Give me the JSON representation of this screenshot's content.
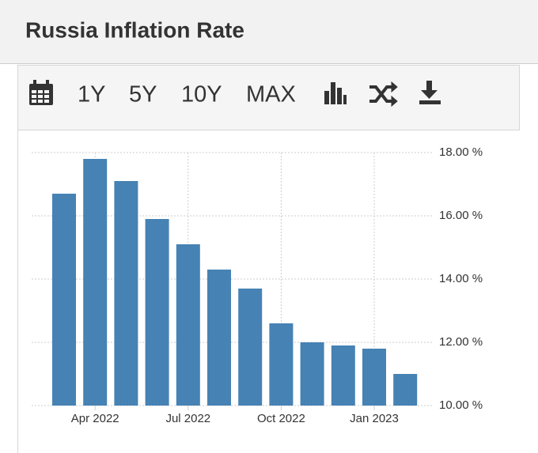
{
  "header": {
    "title": "Russia Inflation Rate"
  },
  "toolbar": {
    "buttons": [
      "1Y",
      "5Y",
      "10Y",
      "MAX"
    ]
  },
  "chart_data": {
    "type": "bar",
    "categories": [
      null,
      "Apr 2022",
      null,
      null,
      "Jul 2022",
      null,
      null,
      "Oct 2022",
      null,
      null,
      "Jan 2023",
      null
    ],
    "values": [
      16.7,
      17.8,
      17.1,
      15.9,
      15.1,
      14.3,
      13.7,
      12.6,
      12.0,
      11.9,
      11.8,
      11.0
    ],
    "color": "#4682b4",
    "ylim": [
      10,
      18
    ],
    "yticks": [
      {
        "value": 10,
        "label": "10.00 %"
      },
      {
        "value": 12,
        "label": "12.00 %"
      },
      {
        "value": 14,
        "label": "14.00 %"
      },
      {
        "value": 16,
        "label": "16.00 %"
      },
      {
        "value": 18,
        "label": "18.00 %"
      }
    ],
    "grid": true
  }
}
